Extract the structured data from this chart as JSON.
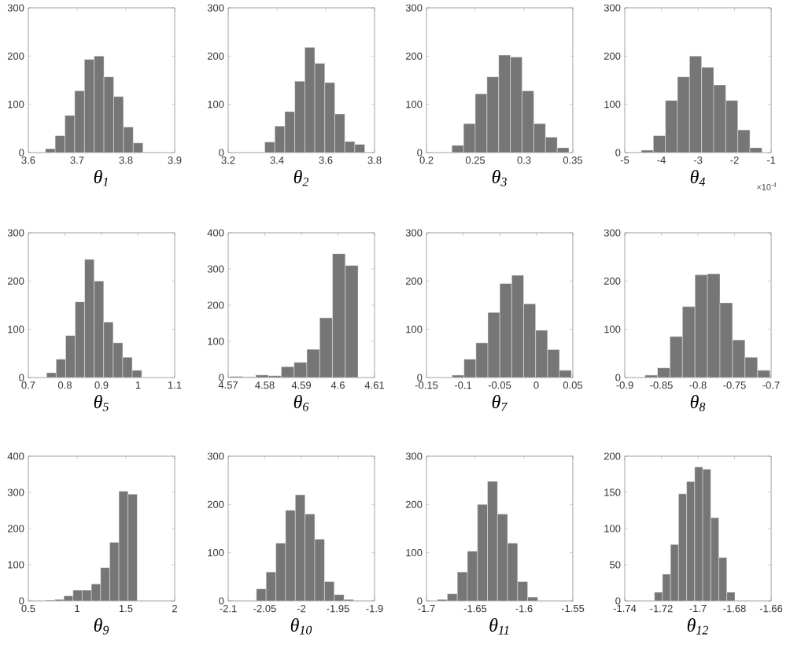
{
  "chart_data": [
    {
      "type": "histogram",
      "xlabel": "θ$_{1}$",
      "color": "#767676",
      "bins": [
        3.635,
        3.655,
        3.675,
        3.695,
        3.715,
        3.735,
        3.755,
        3.775,
        3.795,
        3.815,
        3.835
      ],
      "values": [
        8,
        35,
        77,
        128,
        193,
        200,
        157,
        116,
        53,
        20
      ],
      "xlim": [
        3.6,
        3.9
      ],
      "xticks": [
        3.6,
        3.7,
        3.8,
        3.9
      ],
      "ylim": [
        0,
        300
      ],
      "yticks": [
        0,
        100,
        200,
        300
      ]
    },
    {
      "type": "histogram",
      "xlabel": "θ$_{2}$",
      "color": "#767676",
      "bins": [
        3.35,
        3.391,
        3.432,
        3.473,
        3.514,
        3.555,
        3.596,
        3.637,
        3.678,
        3.719,
        3.76
      ],
      "values": [
        22,
        55,
        85,
        148,
        218,
        185,
        145,
        80,
        23,
        17
      ],
      "xlim": [
        3.2,
        3.8
      ],
      "xticks": [
        3.2,
        3.4,
        3.6,
        3.8
      ],
      "ylim": [
        0,
        300
      ],
      "yticks": [
        0,
        100,
        200,
        300
      ]
    },
    {
      "type": "histogram",
      "xlabel": "θ$_{3}$",
      "color": "#767676",
      "bins": [
        0.226,
        0.238,
        0.25,
        0.262,
        0.274,
        0.286,
        0.298,
        0.31,
        0.322,
        0.334,
        0.346
      ],
      "values": [
        15,
        60,
        122,
        157,
        202,
        198,
        128,
        60,
        32,
        10
      ],
      "xlim": [
        0.2,
        0.35
      ],
      "xticks": [
        0.2,
        0.25,
        0.3,
        0.35
      ],
      "ylim": [
        0,
        300
      ],
      "yticks": [
        0,
        100,
        200,
        300
      ]
    },
    {
      "type": "histogram",
      "xlabel": "θ$_{4}$",
      "color": "#767676",
      "bins": [
        -4.55,
        -4.22,
        -3.89,
        -3.56,
        -3.23,
        -2.9,
        -2.57,
        -2.24,
        -1.91,
        -1.58,
        -1.25
      ],
      "values": [
        5,
        35,
        108,
        157,
        200,
        177,
        140,
        108,
        47,
        10
      ],
      "xlim": [
        -5,
        -1
      ],
      "xticks": [
        -5,
        -4,
        -3,
        -2,
        -1
      ],
      "ylim": [
        0,
        300
      ],
      "yticks": [
        0,
        100,
        200,
        300
      ],
      "annotations": [
        "×10$^{-4}$"
      ]
    },
    {
      "type": "histogram",
      "xlabel": "θ$_{5}$",
      "color": "#767676",
      "bins": [
        0.75,
        0.776,
        0.802,
        0.828,
        0.854,
        0.88,
        0.906,
        0.932,
        0.958,
        0.984,
        1.01
      ],
      "values": [
        10,
        38,
        87,
        157,
        245,
        200,
        115,
        72,
        42,
        15
      ],
      "xlim": [
        0.7,
        1.1
      ],
      "xticks": [
        0.7,
        0.8,
        0.9,
        1,
        1.1
      ],
      "ylim": [
        0,
        300
      ],
      "yticks": [
        0,
        100,
        200,
        300
      ]
    },
    {
      "type": "histogram",
      "xlabel": "θ$_{6}$",
      "color": "#767676",
      "bins": [
        4.5705,
        4.574,
        4.5775,
        4.581,
        4.5845,
        4.588,
        4.5915,
        4.595,
        4.5985,
        4.602,
        4.6055
      ],
      "values": [
        3,
        2,
        7,
        5,
        30,
        42,
        78,
        165,
        342,
        310
      ],
      "xlim": [
        4.57,
        4.61
      ],
      "xticks": [
        4.57,
        4.58,
        4.59,
        4.6,
        4.61
      ],
      "ylim": [
        0,
        400
      ],
      "yticks": [
        0,
        100,
        200,
        300,
        400
      ]
    },
    {
      "type": "histogram",
      "xlabel": "θ$_{7}$",
      "color": "#767676",
      "bins": [
        -0.115,
        -0.0987,
        -0.0824,
        -0.0661,
        -0.0498,
        -0.0335,
        -0.0172,
        -0.0009,
        0.0154,
        0.0317,
        0.048
      ],
      "values": [
        5,
        38,
        72,
        135,
        195,
        212,
        153,
        98,
        58,
        15
      ],
      "xlim": [
        -0.15,
        0.05
      ],
      "xticks": [
        -0.15,
        -0.1,
        -0.05,
        0,
        0.05
      ],
      "ylim": [
        0,
        300
      ],
      "yticks": [
        0,
        100,
        200,
        300
      ]
    },
    {
      "type": "histogram",
      "xlabel": "θ$_{8}$",
      "color": "#767676",
      "bins": [
        -0.8725,
        -0.8554,
        -0.8383,
        -0.8212,
        -0.8041,
        -0.787,
        -0.7699,
        -0.7528,
        -0.7357,
        -0.7186,
        -0.7015
      ],
      "values": [
        5,
        20,
        85,
        147,
        213,
        215,
        155,
        78,
        42,
        15
      ],
      "xlim": [
        -0.9,
        -0.7
      ],
      "xticks": [
        -0.9,
        -0.85,
        -0.8,
        -0.75,
        -0.7
      ],
      "ylim": [
        0,
        300
      ],
      "yticks": [
        0,
        100,
        200,
        300
      ]
    },
    {
      "type": "histogram",
      "xlabel": "θ$_{9}$",
      "color": "#767676",
      "bins": [
        0.676,
        0.77,
        0.864,
        0.958,
        1.052,
        1.146,
        1.24,
        1.334,
        1.428,
        1.522,
        1.616
      ],
      "values": [
        2,
        4,
        14,
        30,
        30,
        47,
        92,
        162,
        303,
        295
      ],
      "xlim": [
        0.5,
        2
      ],
      "xticks": [
        0.5,
        1,
        1.5,
        2
      ],
      "ylim": [
        0,
        400
      ],
      "yticks": [
        0,
        100,
        200,
        300,
        400
      ]
    },
    {
      "type": "histogram",
      "xlabel": "θ$_{10}$",
      "color": "#767676",
      "bins": [
        -2.0615,
        -2.0482,
        -2.0349,
        -2.0216,
        -2.0083,
        -1.995,
        -1.9817,
        -1.9684,
        -1.9551,
        -1.9418,
        -1.9285
      ],
      "values": [
        25,
        60,
        120,
        188,
        220,
        180,
        128,
        40,
        13,
        3
      ],
      "xlim": [
        -2.1,
        -1.9
      ],
      "xticks": [
        -2.1,
        -2.05,
        -2,
        -1.95,
        -1.9
      ],
      "ylim": [
        0,
        300
      ],
      "yticks": [
        0,
        100,
        200,
        300
      ]
    },
    {
      "type": "histogram",
      "xlabel": "θ$_{11}$",
      "color": "#767676",
      "bins": [
        -1.689,
        -1.6787,
        -1.6684,
        -1.6581,
        -1.6478,
        -1.6375,
        -1.6272,
        -1.6169,
        -1.6066,
        -1.5963,
        -1.586
      ],
      "values": [
        3,
        15,
        60,
        103,
        200,
        248,
        180,
        120,
        40,
        8
      ],
      "xlim": [
        -1.7,
        -1.55
      ],
      "xticks": [
        -1.7,
        -1.65,
        -1.6,
        -1.55
      ],
      "ylim": [
        0,
        300
      ],
      "yticks": [
        0,
        100,
        200,
        300
      ]
    },
    {
      "type": "histogram",
      "xlabel": "θ$_{12}$",
      "color": "#767676",
      "bins": [
        -1.7238,
        -1.7194,
        -1.715,
        -1.7106,
        -1.7062,
        -1.7018,
        -1.6974,
        -1.693,
        -1.6886,
        -1.6842,
        -1.6798
      ],
      "values": [
        12,
        37,
        78,
        148,
        165,
        185,
        182,
        115,
        60,
        12
      ],
      "xlim": [
        -1.74,
        -1.66
      ],
      "xticks": [
        -1.74,
        -1.72,
        -1.7,
        -1.68,
        -1.66
      ],
      "ylim": [
        0,
        200
      ],
      "yticks": [
        0,
        50,
        100,
        150,
        200
      ]
    }
  ]
}
